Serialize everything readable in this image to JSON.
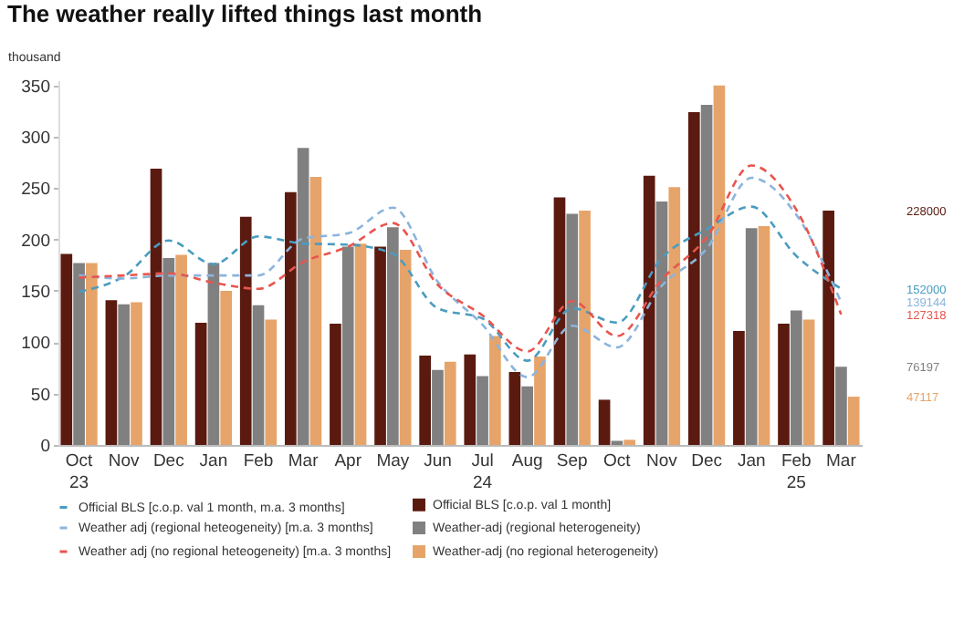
{
  "chart_data": {
    "type": "bar",
    "title": "The weather really lifted things last month",
    "ylabel": "thousand",
    "categories": [
      "Oct\n23",
      "Nov",
      "Dec",
      "Jan",
      "Feb",
      "Mar",
      "Apr",
      "May",
      "Jun",
      "Jul\n24",
      "Aug",
      "Sep",
      "Oct",
      "Nov",
      "Dec",
      "Jan",
      "Feb\n25",
      "Mar"
    ],
    "series": [
      {
        "name": "Official BLS [c.o.p. val 1 month]",
        "color": "#5a1a0f",
        "values": [
          186,
          141,
          269,
          119,
          222,
          246,
          118,
          193,
          87,
          88,
          71,
          241,
          44,
          262,
          324,
          111,
          118,
          228
        ]
      },
      {
        "name": "Weather-adj (regional heterogeneity)",
        "color": "#808080",
        "values": [
          177,
          137,
          182,
          177,
          136,
          289,
          193,
          212,
          73,
          67,
          57,
          225,
          4,
          237,
          331,
          211,
          131,
          76
        ]
      },
      {
        "name": "Weather-adj (no regional heterogeneity)",
        "color": "#e6a46a",
        "values": [
          177,
          139,
          185,
          150,
          122,
          261,
          196,
          190,
          81,
          106,
          86,
          228,
          5,
          251,
          350,
          213,
          122,
          47
        ]
      },
      {
        "type": "line",
        "name": "Official BLS [c.o.p. val 1 month, m.a. 3 months]",
        "color": "#4a9cc0",
        "values": [
          149,
          164,
          199,
          176,
          203,
          196,
          195,
          186,
          133,
          123,
          82,
          133,
          119,
          182,
          210,
          232,
          184,
          152
        ]
      },
      {
        "type": "line",
        "name": "Weather adj (regional heteogeneity) [m.a. 3 months]",
        "color": "#8cb4dc",
        "values": [
          165,
          162,
          165,
          165,
          165,
          201,
          206,
          231,
          159,
          117,
          66,
          116,
          95,
          155,
          191,
          260,
          224,
          139
        ]
      },
      {
        "type": "line",
        "name": "Weather adj (no regional heteogeneity) [m.a. 3 months]",
        "color": "#e8554e",
        "values": [
          163,
          165,
          167,
          158,
          152,
          178,
          193,
          216,
          156,
          126,
          91,
          140,
          106,
          161,
          202,
          272,
          229,
          127
        ]
      }
    ],
    "y2lim": [
      0,
      355000
    ],
    "y2ticks": [
      228000,
      152000,
      139144,
      127318,
      76197,
      47117
    ],
    "ylim": [
      0,
      355
    ],
    "yticks": [
      0,
      50,
      100,
      150,
      200,
      250,
      300,
      350
    ],
    "grid": false,
    "legend": "bottom",
    "line_style": "dashed"
  }
}
